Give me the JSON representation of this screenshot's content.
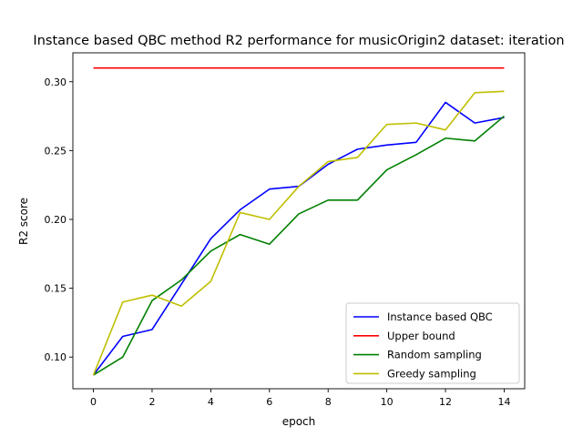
{
  "chart_data": {
    "type": "line",
    "title": "Instance based QBC method R2 performance for musicOrigin2 dataset: iteration",
    "xlabel": "epoch",
    "ylabel": "R2 score",
    "xlim": [
      -0.7,
      14.7
    ],
    "ylim": [
      0.077,
      0.321
    ],
    "xticks": [
      0,
      2,
      4,
      6,
      8,
      10,
      12,
      14
    ],
    "yticks": [
      0.1,
      0.15,
      0.2,
      0.25,
      0.3
    ],
    "ytick_labels": [
      "0.10",
      "0.15",
      "0.20",
      "0.25",
      "0.30"
    ],
    "grid": false,
    "legend_position": "lower-right",
    "x": [
      0,
      1,
      2,
      3,
      4,
      5,
      6,
      7,
      8,
      9,
      10,
      11,
      12,
      13,
      14
    ],
    "series": [
      {
        "name": "Instance based QBC",
        "color": "#0000ff",
        "values": [
          0.087,
          0.115,
          0.12,
          0.153,
          0.186,
          0.207,
          0.222,
          0.224,
          0.24,
          0.251,
          0.254,
          0.256,
          0.285,
          0.27,
          0.274
        ]
      },
      {
        "name": "Upper bound",
        "color": "#ff0000",
        "values": [
          0.31,
          0.31,
          0.31,
          0.31,
          0.31,
          0.31,
          0.31,
          0.31,
          0.31,
          0.31,
          0.31,
          0.31,
          0.31,
          0.31,
          0.31
        ]
      },
      {
        "name": "Random sampling",
        "color": "#008000",
        "values": [
          0.087,
          0.1,
          0.141,
          0.156,
          0.177,
          0.189,
          0.182,
          0.204,
          0.214,
          0.214,
          0.236,
          0.247,
          0.259,
          0.257,
          0.275
        ]
      },
      {
        "name": "Greedy sampling",
        "color": "#bfbf00",
        "values": [
          0.087,
          0.14,
          0.145,
          0.137,
          0.155,
          0.205,
          0.2,
          0.224,
          0.242,
          0.245,
          0.269,
          0.27,
          0.265,
          0.292,
          0.293
        ]
      }
    ]
  }
}
